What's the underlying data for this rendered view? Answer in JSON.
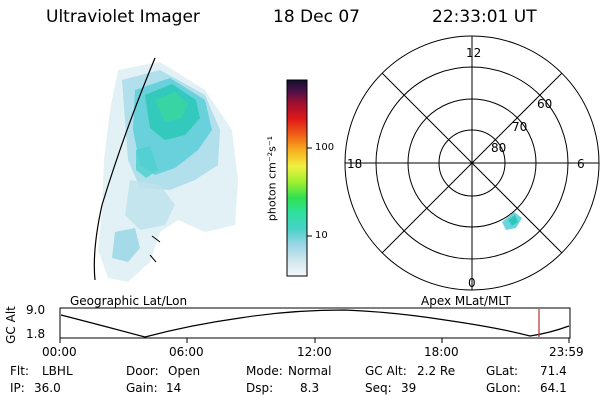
{
  "header": {
    "instrument": "Ultraviolet Imager",
    "date": "18 Dec 07",
    "time": "22:33:01 UT"
  },
  "colorbar": {
    "label": "photon cm⁻²s⁻¹",
    "ticks": [
      "100",
      "10"
    ]
  },
  "polar_plot": {
    "mlt_labels": [
      "12",
      "18",
      "6",
      "0"
    ],
    "lat_labels": [
      "60",
      "70",
      "80"
    ]
  },
  "orbit_panel": {
    "left_caption": "Geographic Lat/Lon",
    "right_caption": "Apex MLat/MLT",
    "y_axis_label": "GC Alt",
    "y_ticks": [
      "9.0",
      "1.8"
    ],
    "x_ticks": [
      "00:00",
      "06:00",
      "12:00",
      "18:00",
      "23:59"
    ],
    "marker_color": "#b03030"
  },
  "status": {
    "flt_label": "Flt:",
    "flt_value": "LBHL",
    "ip_label": "IP:",
    "ip_value": "36.0",
    "door_label": "Door:",
    "door_value": "Open",
    "gain_label": "Gain:",
    "gain_value": "14",
    "mode_label": "Mode:",
    "mode_value": "Normal",
    "dsp_label": "Dsp:",
    "dsp_value": "8.3",
    "gcalt_label": "GC Alt:",
    "gcalt_value": "2.2 Re",
    "seq_label": "Seq:",
    "seq_value": "39",
    "glat_label": "GLat:",
    "glat_value": "71.4",
    "glon_label": "GLon:",
    "glon_value": "64.1"
  }
}
